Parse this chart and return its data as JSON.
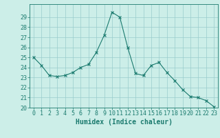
{
  "x": [
    0,
    1,
    2,
    3,
    4,
    5,
    6,
    7,
    8,
    9,
    10,
    11,
    12,
    13,
    14,
    15,
    16,
    17,
    18,
    19,
    20,
    21,
    22,
    23
  ],
  "y": [
    25.0,
    24.2,
    23.2,
    23.1,
    23.2,
    23.5,
    24.0,
    24.3,
    25.5,
    27.2,
    29.5,
    29.0,
    26.0,
    23.4,
    23.2,
    24.2,
    24.5,
    23.5,
    22.7,
    21.8,
    21.1,
    21.0,
    20.7,
    20.1
  ],
  "xlabel": "Humidex (Indice chaleur)",
  "ylim": [
    20,
    30
  ],
  "xlim": [
    -0.5,
    23.5
  ],
  "yticks": [
    20,
    21,
    22,
    23,
    24,
    25,
    26,
    27,
    28,
    29
  ],
  "xticks": [
    0,
    1,
    2,
    3,
    4,
    5,
    6,
    7,
    8,
    9,
    10,
    11,
    12,
    13,
    14,
    15,
    16,
    17,
    18,
    19,
    20,
    21,
    22,
    23
  ],
  "line_color": "#1a7a6e",
  "marker": "x",
  "bg_color": "#cceee8",
  "grid_color": "#99cccc",
  "axis_color": "#1a7a6e",
  "label_fontsize": 7,
  "tick_fontsize": 6
}
